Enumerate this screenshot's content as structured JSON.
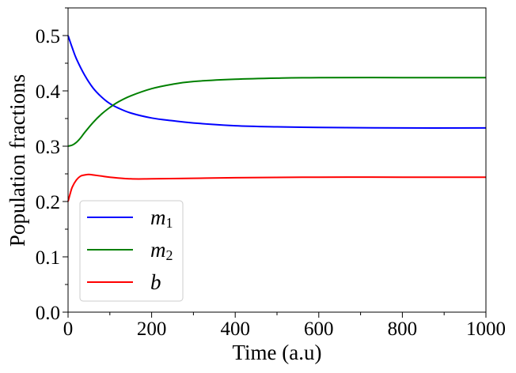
{
  "chart_data": {
    "type": "line",
    "title": "",
    "xlabel": "Time (a.u)",
    "ylabel": "Population fractions",
    "xlim": [
      0,
      1000
    ],
    "ylim": [
      0.0,
      0.55
    ],
    "xticks": [
      0,
      200,
      400,
      600,
      800,
      1000
    ],
    "xtick_labels": [
      "0",
      "200",
      "400",
      "600",
      "800",
      "1000"
    ],
    "yticks": [
      0.0,
      0.1,
      0.2,
      0.3,
      0.4,
      0.5
    ],
    "ytick_labels": [
      "0.0",
      "0.1",
      "0.2",
      "0.3",
      "0.4",
      "0.5"
    ],
    "grid": false,
    "legend_position": "lower-left",
    "series": [
      {
        "name": "m1",
        "label_base": "m",
        "label_sub": "1",
        "color": "#0000ff",
        "x": [
          0,
          10,
          20,
          40,
          60,
          80,
          100,
          120,
          150,
          200,
          250,
          300,
          400,
          500,
          600,
          800,
          1000
        ],
        "values": [
          0.5,
          0.478,
          0.458,
          0.428,
          0.405,
          0.389,
          0.377,
          0.369,
          0.36,
          0.351,
          0.346,
          0.342,
          0.337,
          0.335,
          0.334,
          0.333,
          0.333
        ]
      },
      {
        "name": "m2",
        "label_base": "m",
        "label_sub": "2",
        "color": "#008000",
        "x": [
          0,
          10,
          20,
          30,
          40,
          60,
          80,
          100,
          120,
          150,
          200,
          250,
          300,
          400,
          500,
          600,
          800,
          1000
        ],
        "values": [
          0.3,
          0.302,
          0.307,
          0.315,
          0.325,
          0.343,
          0.358,
          0.37,
          0.38,
          0.391,
          0.404,
          0.412,
          0.417,
          0.421,
          0.423,
          0.424,
          0.424,
          0.424
        ]
      },
      {
        "name": "b",
        "label_base": "b",
        "label_sub": "",
        "color": "#ff0000",
        "x": [
          0,
          5,
          10,
          20,
          30,
          40,
          50,
          60,
          80,
          100,
          150,
          200,
          300,
          400,
          600,
          800,
          1000
        ],
        "values": [
          0.2,
          0.214,
          0.226,
          0.239,
          0.246,
          0.248,
          0.249,
          0.248,
          0.246,
          0.244,
          0.241,
          0.241,
          0.242,
          0.243,
          0.244,
          0.244,
          0.244
        ]
      }
    ]
  }
}
